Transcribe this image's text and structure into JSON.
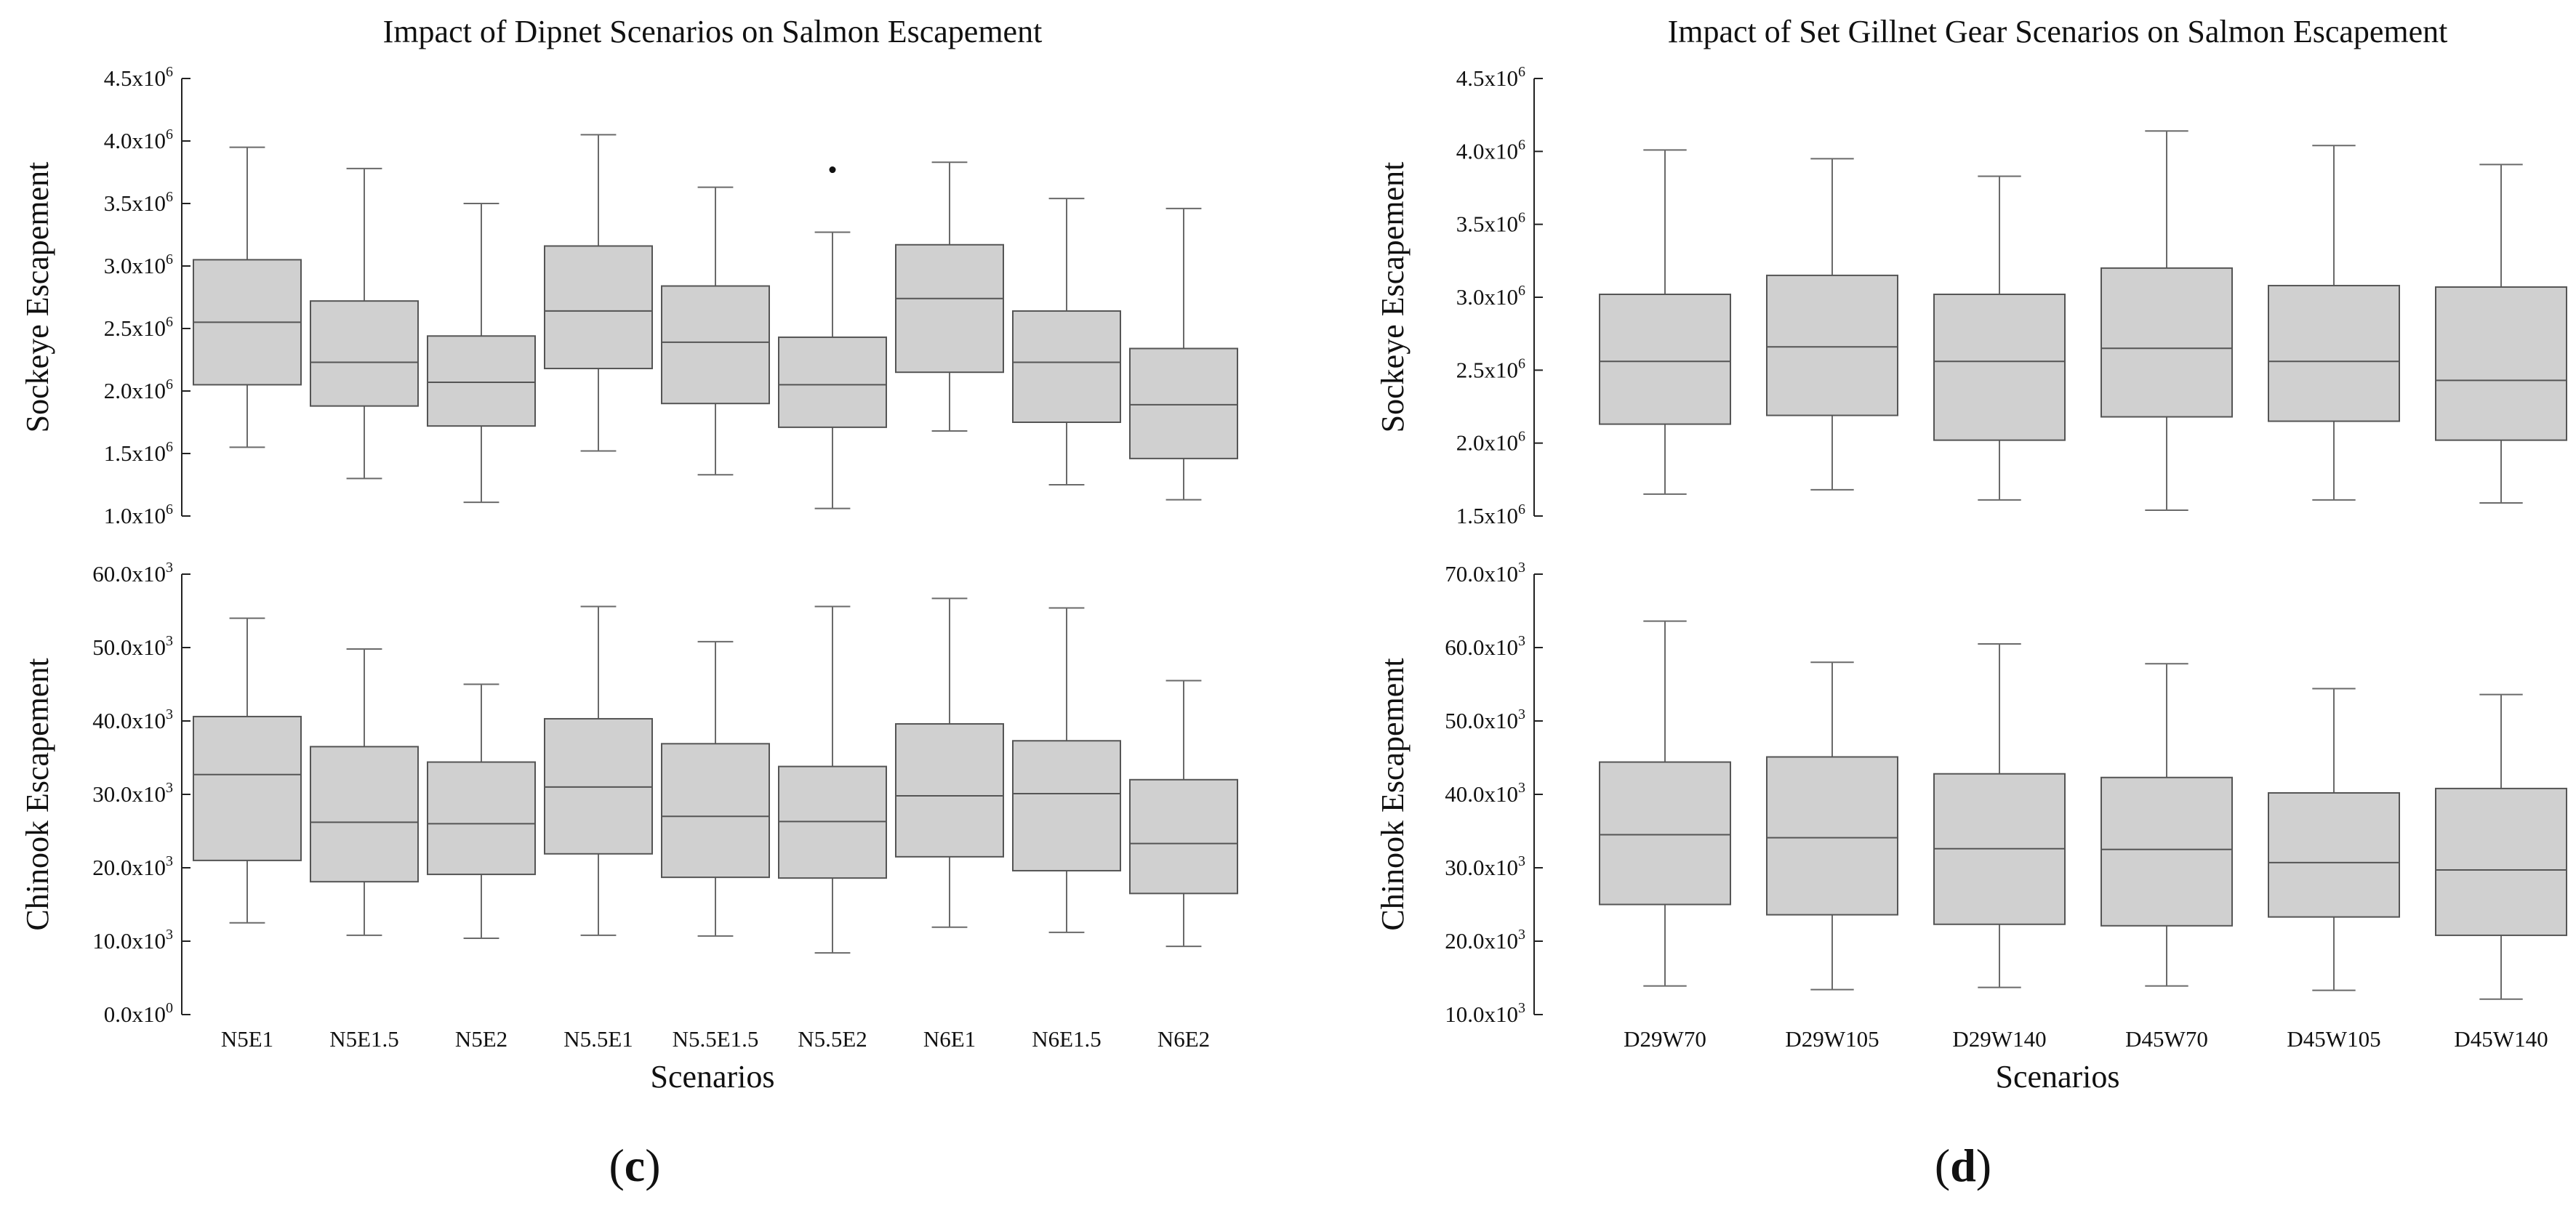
{
  "chart_data": [
    {
      "panel": "c",
      "type": "box",
      "title": "Impact of Dipnet Scenarios on Salmon Escapement",
      "xlabel": "Scenarios",
      "categories": [
        "N5E1",
        "N5E1.5",
        "N5E2",
        "N5.5E1",
        "N5.5E1.5",
        "N5.5E2",
        "N6E1",
        "N6E1.5",
        "N6E2"
      ],
      "subplots": [
        {
          "ylabel": "Sockeye Escapement",
          "ylim": [
            1000000,
            4500000
          ],
          "yticks": [
            {
              "m": "1.0",
              "e": "6"
            },
            {
              "m": "1.5",
              "e": "6"
            },
            {
              "m": "2.0",
              "e": "6"
            },
            {
              "m": "2.5",
              "e": "6"
            },
            {
              "m": "3.0",
              "e": "6"
            },
            {
              "m": "3.5",
              "e": "6"
            },
            {
              "m": "4.0",
              "e": "6"
            },
            {
              "m": "4.5",
              "e": "6"
            }
          ],
          "boxes": [
            {
              "whislo": 1550000,
              "q1": 2050000,
              "med": 2550000,
              "q3": 3050000,
              "whishi": 3950000,
              "fliers": []
            },
            {
              "whislo": 1300000,
              "q1": 1880000,
              "med": 2230000,
              "q3": 2720000,
              "whishi": 3780000,
              "fliers": []
            },
            {
              "whislo": 1110000,
              "q1": 1720000,
              "med": 2070000,
              "q3": 2440000,
              "whishi": 3500000,
              "fliers": []
            },
            {
              "whislo": 1520000,
              "q1": 2180000,
              "med": 2640000,
              "q3": 3160000,
              "whishi": 4050000,
              "fliers": []
            },
            {
              "whislo": 1330000,
              "q1": 1900000,
              "med": 2390000,
              "q3": 2840000,
              "whishi": 3630000,
              "fliers": []
            },
            {
              "whislo": 1060000,
              "q1": 1710000,
              "med": 2050000,
              "q3": 2430000,
              "whishi": 3270000,
              "fliers": [
                3770000
              ]
            },
            {
              "whislo": 1680000,
              "q1": 2150000,
              "med": 2740000,
              "q3": 3170000,
              "whishi": 3830000,
              "fliers": []
            },
            {
              "whislo": 1250000,
              "q1": 1750000,
              "med": 2230000,
              "q3": 2640000,
              "whishi": 3540000,
              "fliers": []
            },
            {
              "whislo": 1130000,
              "q1": 1460000,
              "med": 1890000,
              "q3": 2340000,
              "whishi": 3460000,
              "fliers": []
            }
          ]
        },
        {
          "ylabel": "Chinook Escapement",
          "ylim": [
            0,
            60000
          ],
          "yticks": [
            {
              "m": "0.0",
              "e": "0"
            },
            {
              "m": "10.0",
              "e": "3"
            },
            {
              "m": "20.0",
              "e": "3"
            },
            {
              "m": "30.0",
              "e": "3"
            },
            {
              "m": "40.0",
              "e": "3"
            },
            {
              "m": "50.0",
              "e": "3"
            },
            {
              "m": "60.0",
              "e": "3"
            }
          ],
          "boxes": [
            {
              "whislo": 12500,
              "q1": 21000,
              "med": 32700,
              "q3": 40600,
              "whishi": 54000,
              "fliers": []
            },
            {
              "whislo": 10800,
              "q1": 18100,
              "med": 26200,
              "q3": 36500,
              "whishi": 49800,
              "fliers": []
            },
            {
              "whislo": 10400,
              "q1": 19100,
              "med": 26000,
              "q3": 34400,
              "whishi": 45000,
              "fliers": []
            },
            {
              "whislo": 10800,
              "q1": 21900,
              "med": 31000,
              "q3": 40300,
              "whishi": 55600,
              "fliers": []
            },
            {
              "whislo": 10700,
              "q1": 18700,
              "med": 27000,
              "q3": 36900,
              "whishi": 50800,
              "fliers": []
            },
            {
              "whislo": 8400,
              "q1": 18600,
              "med": 26300,
              "q3": 33800,
              "whishi": 55600,
              "fliers": []
            },
            {
              "whislo": 11900,
              "q1": 21500,
              "med": 29800,
              "q3": 39600,
              "whishi": 56700,
              "fliers": []
            },
            {
              "whislo": 11200,
              "q1": 19600,
              "med": 30100,
              "q3": 37300,
              "whishi": 55400,
              "fliers": []
            },
            {
              "whislo": 9300,
              "q1": 16500,
              "med": 23300,
              "q3": 32000,
              "whishi": 45500,
              "fliers": []
            }
          ]
        }
      ]
    },
    {
      "panel": "d",
      "type": "box",
      "title": "Impact of Set Gillnet Gear Scenarios on Salmon Escapement",
      "xlabel": "Scenarios",
      "categories": [
        "D29W70",
        "D29W105",
        "D29W140",
        "D45W70",
        "D45W105",
        "D45W140"
      ],
      "subplots": [
        {
          "ylabel": "Sockeye Escapement",
          "ylim": [
            1500000,
            4500000
          ],
          "yticks": [
            {
              "m": "1.5",
              "e": "6"
            },
            {
              "m": "2.0",
              "e": "6"
            },
            {
              "m": "2.5",
              "e": "6"
            },
            {
              "m": "3.0",
              "e": "6"
            },
            {
              "m": "3.5",
              "e": "6"
            },
            {
              "m": "4.0",
              "e": "6"
            },
            {
              "m": "4.5",
              "e": "6"
            }
          ],
          "boxes": [
            {
              "whislo": 1650000,
              "q1": 2130000,
              "med": 2560000,
              "q3": 3020000,
              "whishi": 4010000,
              "fliers": []
            },
            {
              "whislo": 1680000,
              "q1": 2190000,
              "med": 2660000,
              "q3": 3150000,
              "whishi": 3950000,
              "fliers": []
            },
            {
              "whislo": 1610000,
              "q1": 2020000,
              "med": 2560000,
              "q3": 3020000,
              "whishi": 3830000,
              "fliers": []
            },
            {
              "whislo": 1540000,
              "q1": 2180000,
              "med": 2650000,
              "q3": 3200000,
              "whishi": 4140000,
              "fliers": []
            },
            {
              "whislo": 1610000,
              "q1": 2150000,
              "med": 2560000,
              "q3": 3080000,
              "whishi": 4040000,
              "fliers": []
            },
            {
              "whislo": 1590000,
              "q1": 2020000,
              "med": 2430000,
              "q3": 3070000,
              "whishi": 3910000,
              "fliers": []
            }
          ]
        },
        {
          "ylabel": "Chinook Escapement",
          "ylim": [
            10000,
            70000
          ],
          "yticks": [
            {
              "m": "10.0",
              "e": "3"
            },
            {
              "m": "20.0",
              "e": "3"
            },
            {
              "m": "30.0",
              "e": "3"
            },
            {
              "m": "40.0",
              "e": "3"
            },
            {
              "m": "50.0",
              "e": "3"
            },
            {
              "m": "60.0",
              "e": "3"
            },
            {
              "m": "70.0",
              "e": "3"
            }
          ],
          "boxes": [
            {
              "whislo": 13900,
              "q1": 25000,
              "med": 34500,
              "q3": 44400,
              "whishi": 63600,
              "fliers": []
            },
            {
              "whislo": 13400,
              "q1": 23600,
              "med": 34100,
              "q3": 45100,
              "whishi": 58000,
              "fliers": []
            },
            {
              "whislo": 13700,
              "q1": 22300,
              "med": 32600,
              "q3": 42800,
              "whishi": 60500,
              "fliers": []
            },
            {
              "whislo": 13900,
              "q1": 22100,
              "med": 32500,
              "q3": 42300,
              "whishi": 57800,
              "fliers": []
            },
            {
              "whislo": 13300,
              "q1": 23300,
              "med": 30700,
              "q3": 40200,
              "whishi": 54400,
              "fliers": []
            },
            {
              "whislo": 12100,
              "q1": 20800,
              "med": 29700,
              "q3": 40800,
              "whishi": 53600,
              "fliers": []
            }
          ]
        }
      ]
    }
  ],
  "panel_labels": [
    "(c)",
    "(d)"
  ],
  "tick_separator": "x10"
}
